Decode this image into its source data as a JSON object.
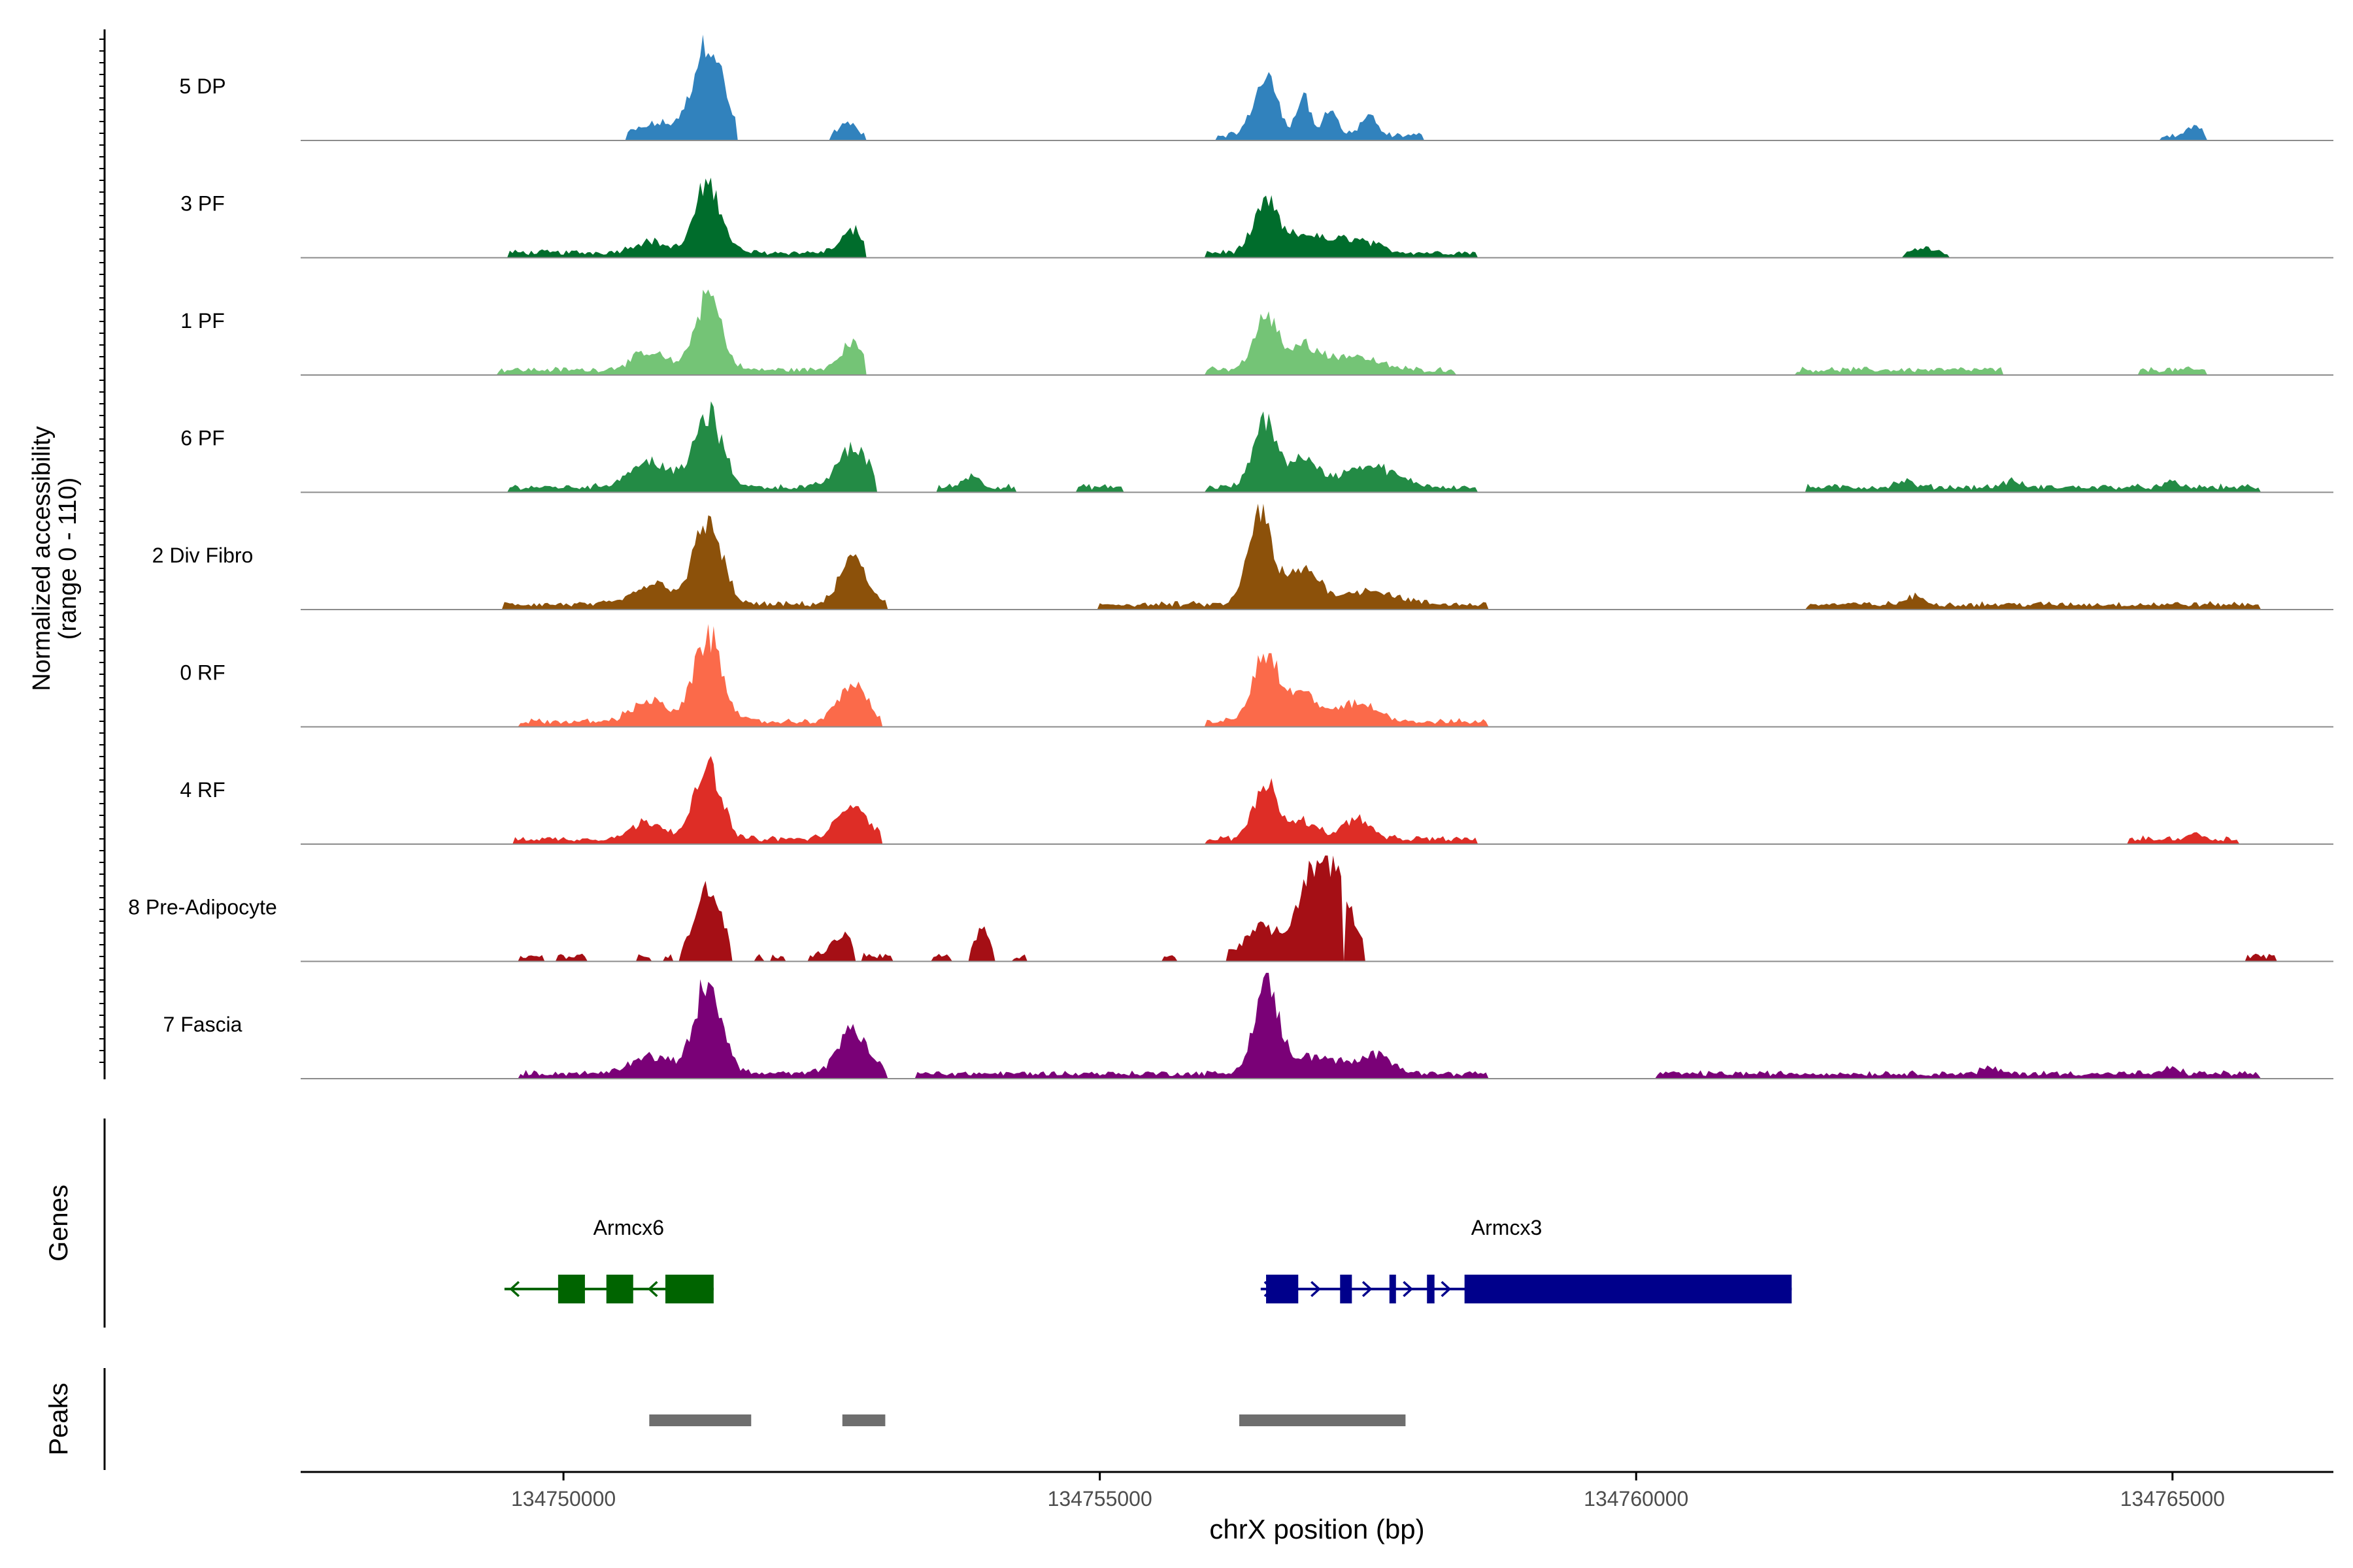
{
  "chart_data": {
    "type": "area",
    "title": "",
    "ylabel": "Normalized accessibility",
    "ylabel_range": "(range 0 - 110)",
    "ylim": [
      0,
      110
    ],
    "xlabel": "chrX position (bp)",
    "xlim": [
      134747550,
      134766500
    ],
    "x_ticks": [
      134750000,
      134755000,
      134760000,
      134765000
    ],
    "x_tick_labels": [
      "134750000",
      "134755000",
      "134760000",
      "134765000"
    ],
    "genes_label": "Genes",
    "peaks_label": "Peaks",
    "tracks": [
      {
        "name": "5 DP",
        "color": "#3182bd",
        "regions": [
          [
            134750600,
            134751600
          ],
          [
            134752500,
            134752800
          ],
          [
            134756100,
            134758000
          ],
          [
            134764900,
            134765300
          ]
        ],
        "peaks": [
          [
            134751350,
            100,
            130
          ],
          [
            134750900,
            12,
            180
          ],
          [
            134752650,
            12,
            80
          ],
          [
            134756550,
            60,
            110
          ],
          [
            134756900,
            40,
            60
          ],
          [
            134757150,
            30,
            60
          ],
          [
            134757500,
            20,
            70
          ],
          [
            134765200,
            10,
            60
          ]
        ]
      },
      {
        "name": "3 PF",
        "color": "#006d2c",
        "regions": [
          [
            134749500,
            134752800
          ],
          [
            134756000,
            134758500
          ],
          [
            134762500,
            134762900
          ]
        ],
        "peaks": [
          [
            134751350,
            72,
            120
          ],
          [
            134750800,
            12,
            150
          ],
          [
            134752700,
            22,
            110
          ],
          [
            134756550,
            52,
            110
          ],
          [
            134756900,
            18,
            150
          ],
          [
            134757350,
            15,
            200
          ],
          [
            134762700,
            8,
            60
          ]
        ]
      },
      {
        "name": "1 PF",
        "color": "#74c476",
        "regions": [
          [
            134749400,
            134752800
          ],
          [
            134756000,
            134758300
          ],
          [
            134761500,
            134763400
          ],
          [
            134764700,
            134765300
          ]
        ],
        "peaks": [
          [
            134751350,
            78,
            120
          ],
          [
            134750800,
            18,
            160
          ],
          [
            134752700,
            28,
            120
          ],
          [
            134756550,
            55,
            110
          ],
          [
            134756900,
            25,
            130
          ],
          [
            134757350,
            15,
            220
          ]
        ]
      },
      {
        "name": "6 PF",
        "color": "#238b45",
        "regions": [
          [
            134749500,
            134752900
          ],
          [
            134753500,
            134754200
          ],
          [
            134754800,
            134755200
          ],
          [
            134756000,
            134758500
          ],
          [
            134761600,
            134765800
          ]
        ],
        "peaks": [
          [
            134751350,
            75,
            130
          ],
          [
            134750800,
            28,
            180
          ],
          [
            134752700,
            42,
            140
          ],
          [
            134753800,
            12,
            80
          ],
          [
            134756550,
            70,
            110
          ],
          [
            134756900,
            30,
            120
          ],
          [
            134757500,
            22,
            250
          ],
          [
            134762500,
            6,
            80
          ],
          [
            134763500,
            6,
            80
          ],
          [
            134765000,
            5,
            60
          ]
        ]
      },
      {
        "name": "2 Div Fibro",
        "color": "#8c510a",
        "regions": [
          [
            134749450,
            134753000
          ],
          [
            134755000,
            134758600
          ],
          [
            134761600,
            134765800
          ]
        ],
        "peaks": [
          [
            134751350,
            85,
            130
          ],
          [
            134750850,
            22,
            180
          ],
          [
            134752700,
            48,
            120
          ],
          [
            134756500,
            95,
            110
          ],
          [
            134756900,
            35,
            150
          ],
          [
            134757500,
            15,
            250
          ],
          [
            134762600,
            8,
            90
          ]
        ]
      },
      {
        "name": "0 RF",
        "color": "#fb6a4a",
        "regions": [
          [
            134749600,
            134752950
          ],
          [
            134756000,
            134758600
          ]
        ],
        "peaks": [
          [
            134751350,
            88,
            130
          ],
          [
            134750800,
            22,
            160
          ],
          [
            134752700,
            40,
            130
          ],
          [
            134756550,
            72,
            120
          ],
          [
            134756900,
            28,
            130
          ],
          [
            134757400,
            18,
            200
          ]
        ]
      },
      {
        "name": "4 RF",
        "color": "#de2d26",
        "regions": [
          [
            134749550,
            134752950
          ],
          [
            134756000,
            134758500
          ],
          [
            134764600,
            134765600
          ]
        ],
        "peaks": [
          [
            134751350,
            78,
            120
          ],
          [
            134750800,
            18,
            160
          ],
          [
            134752700,
            35,
            140
          ],
          [
            134756550,
            58,
            110
          ],
          [
            134756900,
            18,
            150
          ],
          [
            134757400,
            22,
            120
          ],
          [
            134765200,
            6,
            70
          ]
        ]
      },
      {
        "name": "8 Pre-Adipocyte",
        "color": "#a50f15",
        "regions": [
          [
            134749600,
            134749800
          ],
          [
            134749950,
            134750200
          ],
          [
            134750700,
            134750800
          ],
          [
            134750950,
            134751000
          ],
          [
            134751100,
            134751550
          ],
          [
            134751800,
            134751850
          ],
          [
            134751950,
            134752050
          ],
          [
            134752300,
            134752700
          ],
          [
            134752800,
            134753050
          ],
          [
            134753450,
            134753600
          ],
          [
            134753800,
            134754000
          ],
          [
            134754200,
            134754300
          ],
          [
            134755600,
            134755700
          ],
          [
            134756200,
            134757250
          ],
          [
            134757300,
            134757450
          ],
          [
            134765700,
            134765950
          ]
        ],
        "peaks": [
          [
            134751350,
            70,
            120
          ],
          [
            134752600,
            22,
            100
          ],
          [
            134753900,
            28,
            60
          ],
          [
            134756500,
            30,
            150
          ],
          [
            134757150,
            95,
            170
          ],
          [
            134756900,
            40,
            120
          ]
        ]
      },
      {
        "name": "7 Fascia",
        "color": "#7a0177",
        "regions": [
          [
            134749600,
            134753000
          ],
          [
            134753300,
            134758600
          ],
          [
            134760200,
            134765800
          ]
        ],
        "peaks": [
          [
            134751350,
            95,
            130
          ],
          [
            134750800,
            18,
            180
          ],
          [
            134752700,
            45,
            140
          ],
          [
            134756550,
            92,
            110
          ],
          [
            134757000,
            18,
            250
          ],
          [
            134757600,
            18,
            150
          ],
          [
            134763300,
            6,
            80
          ],
          [
            134765000,
            6,
            60
          ]
        ]
      }
    ],
    "genes": [
      {
        "name": "Armcx6",
        "color": "#006400",
        "strand": "-",
        "start": 134749450,
        "end": 134751400,
        "exons": [
          [
            134749950,
            134750200
          ],
          [
            134750400,
            134750650
          ],
          [
            134750950,
            134751400
          ]
        ]
      },
      {
        "name": "Armcx3",
        "color": "#00008b",
        "strand": "+",
        "start": 134756500,
        "end": 134761450,
        "exons": [
          [
            134756550,
            134756850
          ],
          [
            134757240,
            134757350
          ],
          [
            134757700,
            134757760
          ],
          [
            134758050,
            134758120
          ],
          [
            134758400,
            134761450
          ]
        ]
      }
    ],
    "peaks": [
      [
        134750800,
        134751750
      ],
      [
        134752600,
        134753000
      ],
      [
        134756300,
        134757850
      ]
    ]
  }
}
